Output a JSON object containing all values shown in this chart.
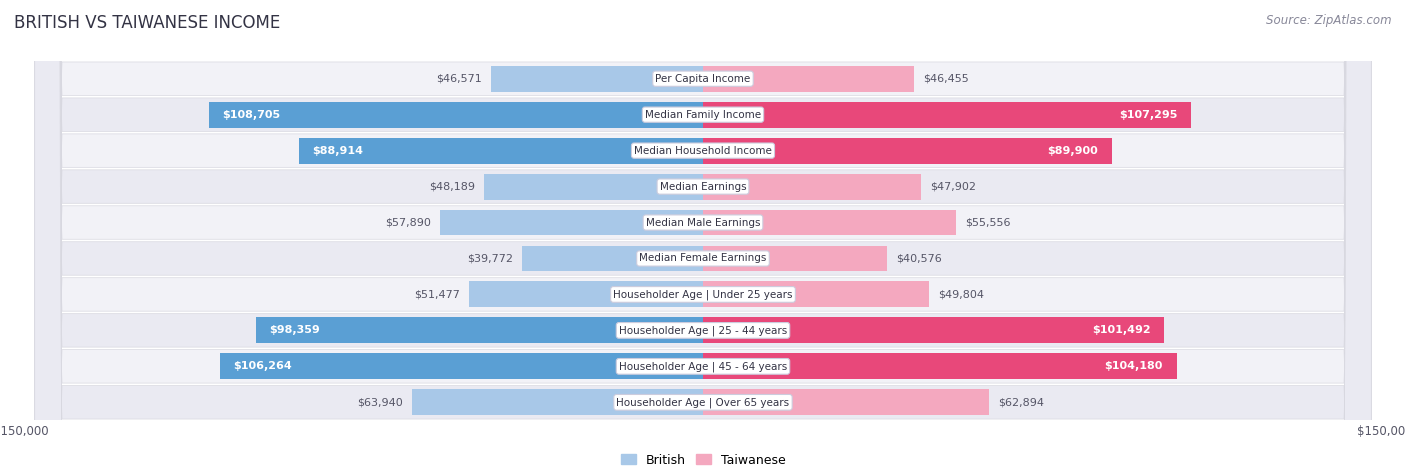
{
  "title": "BRITISH VS TAIWANESE INCOME",
  "source": "Source: ZipAtlas.com",
  "categories": [
    "Per Capita Income",
    "Median Family Income",
    "Median Household Income",
    "Median Earnings",
    "Median Male Earnings",
    "Median Female Earnings",
    "Householder Age | Under 25 years",
    "Householder Age | 25 - 44 years",
    "Householder Age | 45 - 64 years",
    "Householder Age | Over 65 years"
  ],
  "british_values": [
    46571,
    108705,
    88914,
    48189,
    57890,
    39772,
    51477,
    98359,
    106264,
    63940
  ],
  "taiwanese_values": [
    46455,
    107295,
    89900,
    47902,
    55556,
    40576,
    49804,
    101492,
    104180,
    62894
  ],
  "british_color_light": "#a8c8e8",
  "british_color_dark": "#5a9fd4",
  "taiwanese_color_light": "#f4a8bf",
  "taiwanese_color_dark": "#e8487a",
  "label_white_threshold": 65000,
  "max_value": 150000,
  "bg_color": "#ffffff",
  "row_bg_odd": "#f0f0f5",
  "row_bg_even": "#e8e8f0",
  "title_fontsize": 12,
  "source_fontsize": 8.5,
  "bar_fontsize": 8,
  "category_fontsize": 7.5,
  "axis_fontsize": 8.5
}
